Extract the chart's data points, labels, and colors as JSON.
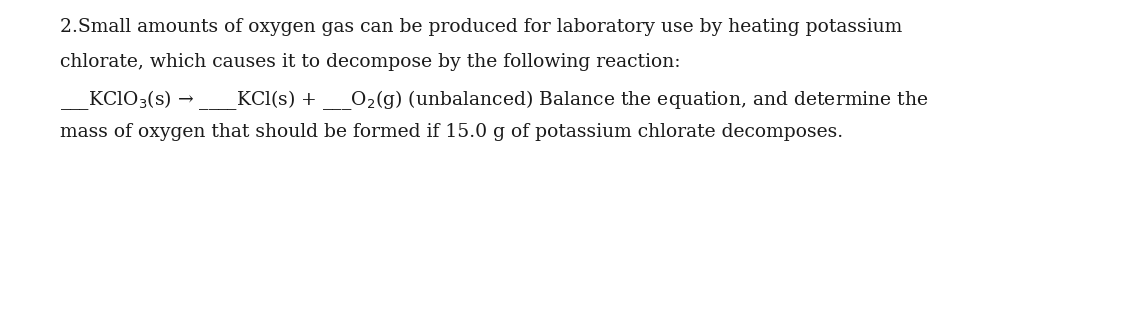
{
  "background_color": "#ffffff",
  "text_color": "#1a1a1a",
  "figsize": [
    11.25,
    3.22
  ],
  "dpi": 100,
  "line1": "2.Small amounts of oxygen gas can be produced for laboratory use by heating potassium",
  "line2": "chlorate, which causes it to decompose by the following reaction:",
  "line3": "___KClO$_3$(s) → ____KCl(s) + ___O$_2$(g) (unbalanced) Balance the equation, and determine the",
  "line4": "mass of oxygen that should be formed if 15.0 g of potassium chlorate decomposes.",
  "font_size": 13.5,
  "font_family": "DejaVu Serif"
}
